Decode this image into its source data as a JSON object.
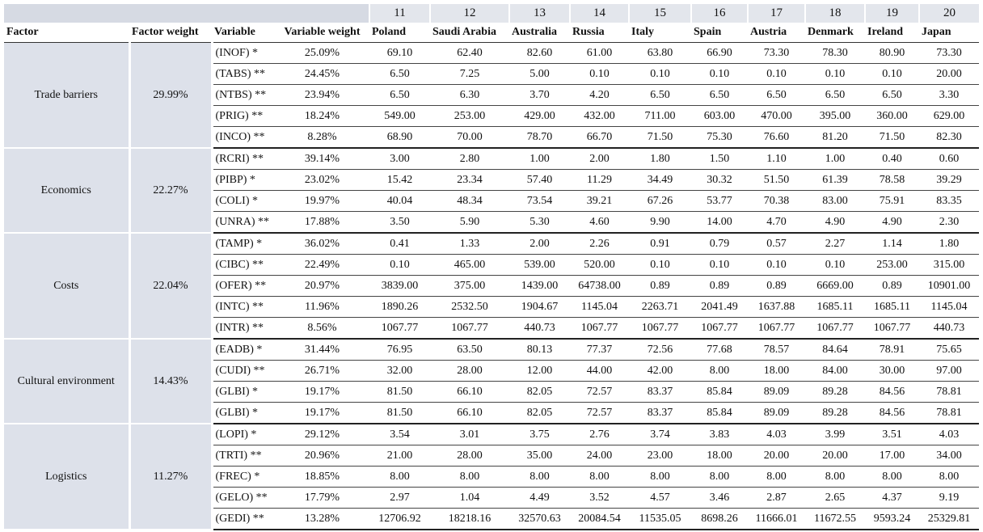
{
  "table": {
    "column_numbers": [
      11,
      12,
      13,
      14,
      15,
      16,
      17,
      18,
      19,
      20
    ],
    "headers": [
      "Factor",
      "Factor weight",
      "Variable",
      "Variable weight"
    ],
    "countries": [
      "Poland",
      "Saudi Arabia",
      "Australia",
      "Russia",
      "Italy",
      "Spain",
      "Austria",
      "Denmark",
      "Ireland",
      "Japan"
    ],
    "groups": [
      {
        "factor": "Trade barriers",
        "weight": "29.99%",
        "rows": [
          {
            "variable": "(INOF) *",
            "weight": "25.09%",
            "values": [
              "69.10",
              "62.40",
              "82.60",
              "61.00",
              "63.80",
              "66.90",
              "73.30",
              "78.30",
              "80.90",
              "73.30"
            ]
          },
          {
            "variable": "(TABS) **",
            "weight": "24.45%",
            "values": [
              "6.50",
              "7.25",
              "5.00",
              "0.10",
              "0.10",
              "0.10",
              "0.10",
              "0.10",
              "0.10",
              "20.00"
            ]
          },
          {
            "variable": "(NTBS) **",
            "weight": "23.94%",
            "values": [
              "6.50",
              "6.30",
              "3.70",
              "4.20",
              "6.50",
              "6.50",
              "6.50",
              "6.50",
              "6.50",
              "3.30"
            ]
          },
          {
            "variable": "(PRIG) **",
            "weight": "18.24%",
            "values": [
              "549.00",
              "253.00",
              "429.00",
              "432.00",
              "711.00",
              "603.00",
              "470.00",
              "395.00",
              "360.00",
              "629.00"
            ]
          },
          {
            "variable": "(INCO) **",
            "weight": "8.28%",
            "values": [
              "68.90",
              "70.00",
              "78.70",
              "66.70",
              "71.50",
              "75.30",
              "76.60",
              "81.20",
              "71.50",
              "82.30"
            ]
          }
        ]
      },
      {
        "factor": "Economics",
        "weight": "22.27%",
        "rows": [
          {
            "variable": "(RCRI) **",
            "weight": "39.14%",
            "values": [
              "3.00",
              "2.80",
              "1.00",
              "2.00",
              "1.80",
              "1.50",
              "1.10",
              "1.00",
              "0.40",
              "0.60"
            ]
          },
          {
            "variable": "(PIBP) *",
            "weight": "23.02%",
            "values": [
              "15.42",
              "23.34",
              "57.40",
              "11.29",
              "34.49",
              "30.32",
              "51.50",
              "61.39",
              "78.58",
              "39.29"
            ]
          },
          {
            "variable": "(COLI) *",
            "weight": "19.97%",
            "values": [
              "40.04",
              "48.34",
              "73.54",
              "39.21",
              "67.26",
              "53.77",
              "70.38",
              "83.00",
              "75.91",
              "83.35"
            ]
          },
          {
            "variable": "(UNRA) **",
            "weight": "17.88%",
            "values": [
              "3.50",
              "5.90",
              "5.30",
              "4.60",
              "9.90",
              "14.00",
              "4.70",
              "4.90",
              "4.90",
              "2.30"
            ]
          }
        ]
      },
      {
        "factor": "Costs",
        "weight": "22.04%",
        "rows": [
          {
            "variable": "(TAMP) *",
            "weight": "36.02%",
            "values": [
              "0.41",
              "1.33",
              "2.00",
              "2.26",
              "0.91",
              "0.79",
              "0.57",
              "2.27",
              "1.14",
              "1.80"
            ]
          },
          {
            "variable": "(CIBC) **",
            "weight": "22.49%",
            "values": [
              "0.10",
              "465.00",
              "539.00",
              "520.00",
              "0.10",
              "0.10",
              "0.10",
              "0.10",
              "253.00",
              "315.00"
            ]
          },
          {
            "variable": "(OFER) **",
            "weight": "20.97%",
            "values": [
              "3839.00",
              "375.00",
              "1439.00",
              "64738.00",
              "0.89",
              "0.89",
              "0.89",
              "6669.00",
              "0.89",
              "10901.00"
            ]
          },
          {
            "variable": "(INTC) **",
            "weight": "11.96%",
            "values": [
              "1890.26",
              "2532.50",
              "1904.67",
              "1145.04",
              "2263.71",
              "2041.49",
              "1637.88",
              "1685.11",
              "1685.11",
              "1145.04"
            ]
          },
          {
            "variable": "(INTR) **",
            "weight": "8.56%",
            "values": [
              "1067.77",
              "1067.77",
              "440.73",
              "1067.77",
              "1067.77",
              "1067.77",
              "1067.77",
              "1067.77",
              "1067.77",
              "440.73"
            ]
          }
        ]
      },
      {
        "factor": "Cultural environment",
        "weight": "14.43%",
        "rows": [
          {
            "variable": "(EADB) *",
            "weight": "31.44%",
            "values": [
              "76.95",
              "63.50",
              "80.13",
              "77.37",
              "72.56",
              "77.68",
              "78.57",
              "84.64",
              "78.91",
              "75.65"
            ]
          },
          {
            "variable": "(CUDI) **",
            "weight": "26.71%",
            "values": [
              "32.00",
              "28.00",
              "12.00",
              "44.00",
              "42.00",
              "8.00",
              "18.00",
              "84.00",
              "30.00",
              "97.00"
            ]
          },
          {
            "variable": "(GLBI) *",
            "weight": "19.17%",
            "values": [
              "81.50",
              "66.10",
              "82.05",
              "72.57",
              "83.37",
              "85.84",
              "89.09",
              "89.28",
              "84.56",
              "78.81"
            ]
          },
          {
            "variable": "(GLBI) *",
            "weight": "19.17%",
            "values": [
              "81.50",
              "66.10",
              "82.05",
              "72.57",
              "83.37",
              "85.84",
              "89.09",
              "89.28",
              "84.56",
              "78.81"
            ]
          }
        ]
      },
      {
        "factor": "Logistics",
        "weight": "11.27%",
        "rows": [
          {
            "variable": "(LOPI) *",
            "weight": "29.12%",
            "values": [
              "3.54",
              "3.01",
              "3.75",
              "2.76",
              "3.74",
              "3.83",
              "4.03",
              "3.99",
              "3.51",
              "4.03"
            ]
          },
          {
            "variable": "(TRTI) **",
            "weight": "20.96%",
            "values": [
              "21.00",
              "28.00",
              "35.00",
              "24.00",
              "23.00",
              "18.00",
              "20.00",
              "20.00",
              "17.00",
              "34.00"
            ]
          },
          {
            "variable": "(FREC) *",
            "weight": "18.85%",
            "values": [
              "8.00",
              "8.00",
              "8.00",
              "8.00",
              "8.00",
              "8.00",
              "8.00",
              "8.00",
              "8.00",
              "8.00"
            ]
          },
          {
            "variable": "(GELO) **",
            "weight": "17.79%",
            "values": [
              "2.97",
              "1.04",
              "4.49",
              "3.52",
              "4.57",
              "3.46",
              "2.87",
              "2.65",
              "4.37",
              "9.19"
            ]
          },
          {
            "variable": "(GEDI) **",
            "weight": "13.28%",
            "values": [
              "12706.92",
              "18218.16",
              "32570.63",
              "20084.54",
              "11535.05",
              "8698.26",
              "11666.01",
              "11672.55",
              "9593.24",
              "25329.81"
            ]
          }
        ]
      }
    ]
  }
}
